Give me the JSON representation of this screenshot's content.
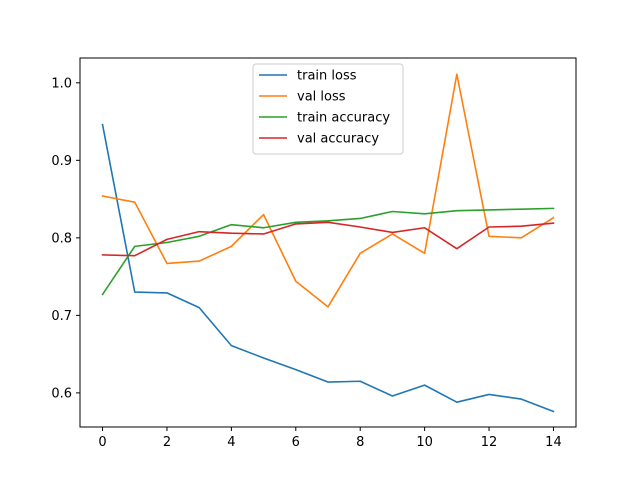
{
  "chart_data": {
    "type": "line",
    "title": "",
    "xlabel": "",
    "ylabel": "",
    "xlim": [
      -0.7,
      14.7
    ],
    "ylim": [
      0.556,
      1.032
    ],
    "x_ticks": [
      0,
      2,
      4,
      6,
      8,
      10,
      12,
      14
    ],
    "y_ticks": [
      0.6,
      0.7,
      0.8,
      0.9,
      1.0
    ],
    "x_tick_labels": [
      "0",
      "2",
      "4",
      "6",
      "8",
      "10",
      "12",
      "14"
    ],
    "y_tick_labels": [
      "0.6",
      "0.7",
      "0.8",
      "0.9",
      "1.0"
    ],
    "grid": false,
    "legend_position": "upper-center",
    "x": [
      0,
      1,
      2,
      3,
      4,
      5,
      6,
      7,
      8,
      9,
      10,
      11,
      12,
      13,
      14
    ],
    "series": [
      {
        "name": "train loss",
        "color": "#1f77b4",
        "values": [
          0.946,
          0.73,
          0.729,
          0.71,
          0.661,
          0.645,
          0.63,
          0.614,
          0.615,
          0.596,
          0.61,
          0.588,
          0.598,
          0.592,
          0.576
        ]
      },
      {
        "name": "val loss",
        "color": "#ff7f0e",
        "values": [
          0.854,
          0.846,
          0.767,
          0.77,
          0.789,
          0.83,
          0.744,
          0.711,
          0.78,
          0.805,
          0.78,
          1.011,
          0.802,
          0.8,
          0.826
        ]
      },
      {
        "name": "train accuracy",
        "color": "#2ca02c",
        "values": [
          0.727,
          0.789,
          0.794,
          0.802,
          0.817,
          0.813,
          0.82,
          0.822,
          0.825,
          0.834,
          0.831,
          0.835,
          0.836,
          0.837,
          0.838
        ]
      },
      {
        "name": "val accuracy",
        "color": "#d62728",
        "values": [
          0.778,
          0.777,
          0.798,
          0.808,
          0.806,
          0.805,
          0.818,
          0.82,
          0.814,
          0.807,
          0.813,
          0.786,
          0.814,
          0.815,
          0.819
        ]
      }
    ]
  }
}
